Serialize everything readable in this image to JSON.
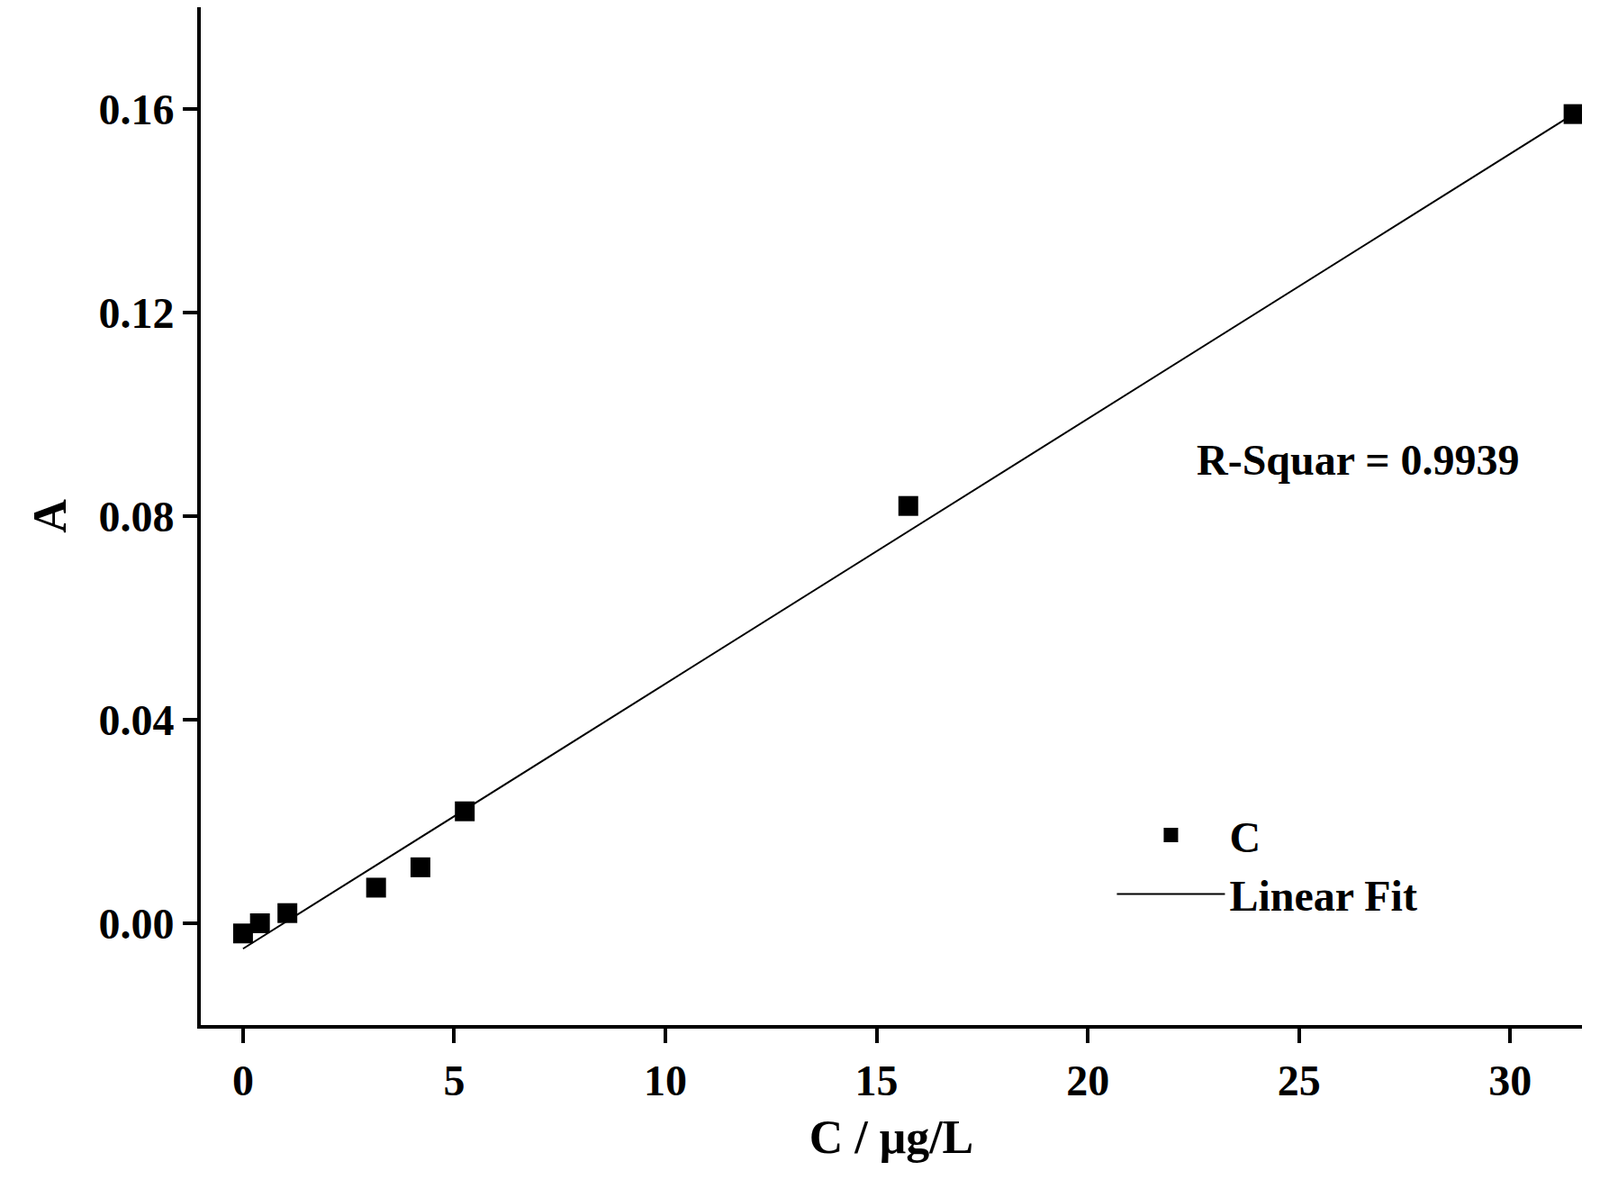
{
  "chart_data": {
    "type": "scatter",
    "x_label": "C / μg/L",
    "y_label": "A",
    "annotation": {
      "text": "R-Squar = 0.9939",
      "x": 26.4,
      "y": 0.091
    },
    "series": [
      {
        "name": "C",
        "type": "scatter",
        "marker": "square",
        "color": "#000000",
        "x": [
          0,
          0.4,
          1.05,
          3.15,
          4.2,
          5.25,
          15.75,
          31.5
        ],
        "values": [
          -0.002,
          0.0,
          0.002,
          0.007,
          0.011,
          0.022,
          0.082,
          0.159
        ]
      },
      {
        "name": "Linear Fit",
        "type": "line",
        "line_style": "solid",
        "color": "#000000",
        "x": [
          0,
          31.5
        ],
        "values": [
          -0.005,
          0.159
        ]
      }
    ],
    "xlim": [
      -1,
      31.7
    ],
    "ylim": [
      -0.02,
      0.18
    ],
    "xticks": [
      0,
      5,
      10,
      15,
      20,
      25,
      30
    ],
    "yticks": [
      {
        "value": 0,
        "label": "0.00"
      },
      {
        "value": 0.04,
        "label": "0.04"
      },
      {
        "value": 0.08,
        "label": "0.08"
      },
      {
        "value": 0.12,
        "label": "0.12"
      },
      {
        "value": 0.16,
        "label": "0.16"
      }
    ],
    "grid": false,
    "legend": "lower right"
  }
}
